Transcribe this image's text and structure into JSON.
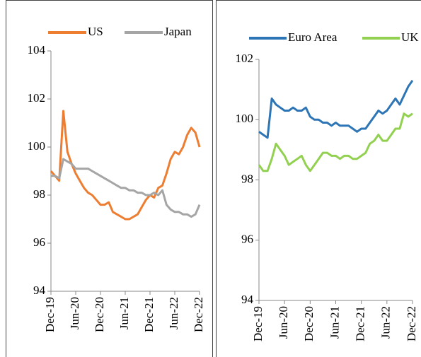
{
  "chart_data": [
    {
      "type": "line",
      "categories": [
        "Dec-19",
        null,
        null,
        null,
        null,
        null,
        "Jun-20",
        null,
        null,
        null,
        null,
        null,
        "Dec-20",
        null,
        null,
        null,
        null,
        null,
        "Jun-21",
        null,
        null,
        null,
        null,
        null,
        "Dec-21",
        null,
        null,
        null,
        null,
        null,
        "Jun-22",
        null,
        null,
        null,
        null,
        null,
        "Dec-22"
      ],
      "series": [
        {
          "name": "US",
          "color": "#ed7d31",
          "values": [
            99.0,
            98.8,
            98.6,
            101.5,
            99.8,
            99.3,
            98.9,
            98.6,
            98.3,
            98.1,
            98.0,
            97.8,
            97.6,
            97.6,
            97.7,
            97.3,
            97.2,
            97.1,
            97.0,
            97.0,
            97.1,
            97.2,
            97.5,
            97.8,
            98.0,
            97.9,
            98.3,
            98.4,
            98.9,
            99.5,
            99.8,
            99.7,
            100.0,
            100.5,
            100.8,
            100.6,
            100.0
          ]
        },
        {
          "name": "Japan",
          "color": "#a5a5a5",
          "values": [
            98.8,
            98.8,
            98.7,
            99.5,
            99.4,
            99.3,
            99.1,
            99.1,
            99.1,
            99.1,
            99.0,
            98.9,
            98.8,
            98.7,
            98.6,
            98.5,
            98.4,
            98.3,
            98.3,
            98.2,
            98.2,
            98.1,
            98.1,
            98.0,
            98.0,
            98.1,
            98.0,
            98.2,
            97.6,
            97.4,
            97.3,
            97.3,
            97.2,
            97.2,
            97.1,
            97.2,
            97.6
          ]
        }
      ],
      "ylim": [
        94,
        104
      ],
      "yticks": [
        94,
        96,
        98,
        100,
        102,
        104
      ],
      "grid": false,
      "legend": "top"
    },
    {
      "type": "line",
      "categories": [
        "Dec-19",
        null,
        null,
        null,
        null,
        null,
        "Jun-20",
        null,
        null,
        null,
        null,
        null,
        "Dec-20",
        null,
        null,
        null,
        null,
        null,
        "Jun-21",
        null,
        null,
        null,
        null,
        null,
        "Dec-21",
        null,
        null,
        null,
        null,
        null,
        "Jun-22",
        null,
        null,
        null,
        null,
        null,
        "Dec-22"
      ],
      "series": [
        {
          "name": "Euro Area",
          "color": "#2e75b6",
          "values": [
            99.6,
            99.5,
            99.4,
            100.7,
            100.5,
            100.4,
            100.3,
            100.3,
            100.4,
            100.3,
            100.3,
            100.4,
            100.1,
            100.0,
            100.0,
            99.9,
            99.9,
            99.8,
            99.9,
            99.8,
            99.8,
            99.8,
            99.7,
            99.6,
            99.7,
            99.7,
            99.9,
            100.1,
            100.3,
            100.2,
            100.3,
            100.5,
            100.7,
            100.5,
            100.8,
            101.1,
            101.3
          ]
        },
        {
          "name": "UK",
          "color": "#92d050",
          "values": [
            98.5,
            98.3,
            98.3,
            98.7,
            99.2,
            99.0,
            98.8,
            98.5,
            98.6,
            98.7,
            98.8,
            98.5,
            98.3,
            98.5,
            98.7,
            98.9,
            98.9,
            98.8,
            98.8,
            98.7,
            98.8,
            98.8,
            98.7,
            98.7,
            98.8,
            98.9,
            99.2,
            99.3,
            99.5,
            99.3,
            99.3,
            99.5,
            99.7,
            99.7,
            100.2,
            100.1,
            100.2
          ]
        }
      ],
      "ylim": [
        94,
        102
      ],
      "yticks": [
        94,
        96,
        98,
        100,
        102
      ],
      "grid": false,
      "legend": "top"
    }
  ]
}
